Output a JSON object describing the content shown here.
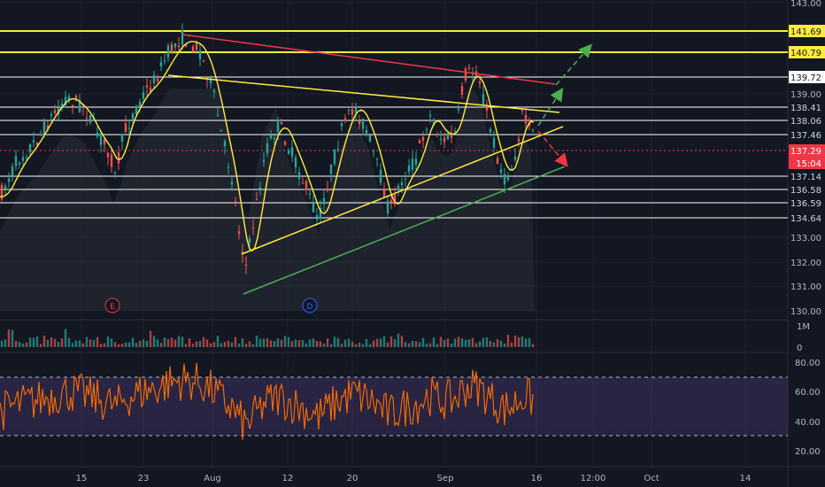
{
  "chart_data": {
    "type": "line",
    "main_panel": {
      "y_ticks": [
        "143.00",
        "139.00",
        "133.00",
        "132.00",
        "131.00",
        "130.00"
      ],
      "ylim": [
        130,
        143.2
      ],
      "price_lines": [
        {
          "label": "141.69",
          "value": 141.69,
          "color": "#ffeb3b",
          "tag_bg": "#ffeb3b",
          "tag_fg": "#131722"
        },
        {
          "label": "140.79",
          "value": 140.79,
          "color": "#ffeb3b",
          "tag_bg": "#ffeb3b",
          "tag_fg": "#131722"
        },
        {
          "label": "139.72",
          "value": 139.72,
          "color": "#ffffff",
          "tag_bg": "#ffffff",
          "tag_fg": "#131722"
        },
        {
          "label": "138.41",
          "value": 138.41,
          "color": "#ffffff",
          "tag_bg": "#131722",
          "tag_fg": "#d1d4dc"
        },
        {
          "label": "138.06",
          "value": 138.06,
          "color": "#ffffff",
          "tag_bg": "#131722",
          "tag_fg": "#d1d4dc"
        },
        {
          "label": "137.46",
          "value": 137.46,
          "color": "#ffffff",
          "tag_bg": "#131722",
          "tag_fg": "#d1d4dc"
        },
        {
          "label": "137.29",
          "value": 137.29,
          "color": "#f23645",
          "tag_bg": "#f23645",
          "tag_fg": "#ffffff",
          "dotted": true
        },
        {
          "label": "137.14",
          "value": 137.14,
          "color": "#ffffff",
          "tag_bg": "#131722",
          "tag_fg": "#d1d4dc"
        },
        {
          "label": "136.58",
          "value": 136.58,
          "color": "#ffffff",
          "tag_bg": "#131722",
          "tag_fg": "#d1d4dc"
        },
        {
          "label": "136.59",
          "value": 136.59,
          "color": "#ffffff",
          "tag_bg": "#131722",
          "tag_fg": "#d1d4dc"
        },
        {
          "label": "134.64",
          "value": 134.64,
          "color": "#ffffff",
          "tag_bg": "#131722",
          "tag_fg": "#d1d4dc"
        }
      ],
      "countdown_label": "15:04",
      "event_markers": [
        "E",
        "D"
      ],
      "trendlines": [
        {
          "name": "resistance-red",
          "color": "#f23645"
        },
        {
          "name": "upper-yellow",
          "color": "#ffeb3b"
        },
        {
          "name": "lower-yellow",
          "color": "#ffeb3b"
        },
        {
          "name": "support-green",
          "color": "#4caf50"
        }
      ],
      "projection_arrows": [
        {
          "name": "bull-target-arrow",
          "color": "#4caf50"
        },
        {
          "name": "bull-breakout-arrow",
          "color": "#4caf50"
        },
        {
          "name": "bear-breakdown-arrow",
          "color": "#f23645"
        }
      ]
    },
    "volume_panel": {
      "y_ticks": [
        "1M",
        "0"
      ]
    },
    "rsi_panel": {
      "y_ticks": [
        "80.00",
        "60.00",
        "40.00",
        "20.00"
      ],
      "ylim": [
        15,
        85
      ],
      "bands": [
        70,
        30
      ],
      "line_color": "#ff6d00"
    },
    "x_ticks": [
      "15",
      "23",
      "Aug",
      "12",
      "20",
      "Sep",
      "16",
      "12:00",
      "Oct",
      "14"
    ]
  }
}
